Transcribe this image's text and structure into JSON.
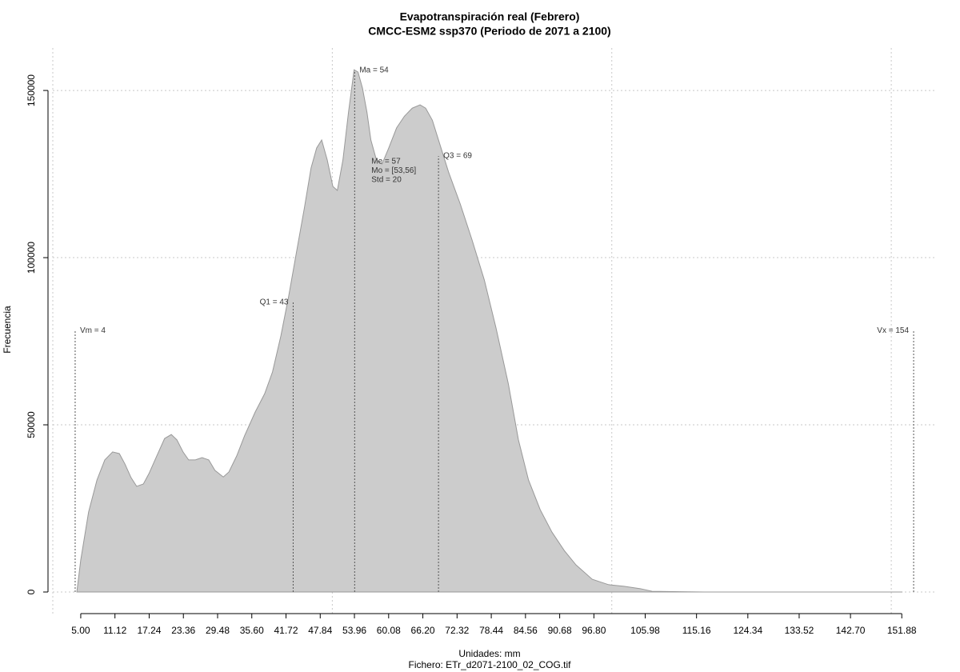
{
  "chart_data": {
    "type": "area",
    "title": "Evapotranspiración real (Febrero)",
    "subtitle": "CMCC-ESM2 ssp370 (Periodo de 2071 a 2100)",
    "x_label": "Unidades: mm",
    "caption": "Fichero: ETr_d2071-2100_02_COG.tif",
    "y_label": "Frecuencia",
    "color": "#cccccc",
    "line_color": "#999999",
    "x": [
      4.3,
      5.0,
      6.4,
      7.9,
      9.3,
      10.7,
      11.9,
      12.9,
      14.0,
      15.0,
      16.2,
      17.2,
      18.6,
      20.0,
      21.2,
      22.2,
      23.3,
      24.3,
      25.5,
      26.7,
      27.9,
      29.0,
      30.5,
      31.5,
      32.9,
      34.3,
      36.2,
      37.9,
      39.3,
      40.8,
      42.2,
      43.6,
      45.0,
      46.2,
      47.2,
      48.1,
      49.1,
      50.1,
      50.9,
      51.9,
      52.9,
      53.9,
      54.6,
      55.4,
      56.2,
      56.9,
      57.9,
      58.9,
      60.1,
      61.5,
      62.9,
      64.3,
      65.7,
      66.7,
      67.9,
      69.0,
      70.8,
      72.9,
      75.0,
      77.2,
      79.3,
      81.5,
      83.3,
      85.1,
      87.2,
      89.3,
      91.5,
      93.6,
      96.5,
      99.4,
      102.2,
      105.1,
      107.2,
      112.3,
      116.6,
      152.0
    ],
    "values": [
      0,
      9570,
      23900,
      33500,
      39500,
      41900,
      41400,
      38300,
      34200,
      31600,
      32300,
      35400,
      40700,
      45900,
      47100,
      45500,
      41900,
      39500,
      39500,
      40200,
      39500,
      36400,
      34400,
      35900,
      40700,
      46700,
      53800,
      59300,
      65800,
      76600,
      88500,
      101700,
      114800,
      126800,
      132800,
      135200,
      129200,
      121300,
      120100,
      129200,
      143500,
      156200,
      155500,
      150700,
      143500,
      135200,
      129200,
      128000,
      132800,
      138800,
      142300,
      144700,
      145700,
      144700,
      141100,
      135200,
      125600,
      116000,
      105300,
      93300,
      78900,
      62200,
      45500,
      33500,
      24600,
      17900,
      12400,
      8100,
      3800,
      2200,
      1700,
      1000,
      200,
      100,
      0,
      0
    ],
    "xlim": [
      0,
      158
    ],
    "ylim": [
      -6700,
      162700
    ],
    "xticks": [
      5.0,
      11.12,
      17.24,
      23.36,
      29.48,
      35.6,
      41.72,
      47.84,
      53.96,
      60.08,
      66.2,
      72.32,
      78.44,
      84.56,
      90.68,
      96.8,
      105.98,
      115.16,
      124.34,
      133.52,
      142.7,
      151.88
    ],
    "yticks": [
      0,
      50000,
      100000,
      150000
    ],
    "xgrid": [
      0,
      50,
      100,
      150
    ],
    "grid": true,
    "markers": [
      {
        "text": "Vm = 4",
        "x": 4,
        "height": 78200,
        "anchor": "left"
      },
      {
        "text": "Q1 = 43",
        "x": 43,
        "height": 86600,
        "anchor": "right"
      },
      {
        "text": "Ma = 54",
        "x": 54,
        "height": 156000,
        "anchor": "left"
      },
      {
        "text": "Q3 = 69",
        "x": 69,
        "height": 130400,
        "anchor": "left"
      },
      {
        "text": "Vx = 154",
        "x": 154,
        "height": 78200,
        "anchor": "right"
      }
    ],
    "stats": {
      "lines": [
        "Me = 57",
        "Mo = [53,56]",
        "Std = 20"
      ],
      "x": 57,
      "y": 128700
    }
  }
}
